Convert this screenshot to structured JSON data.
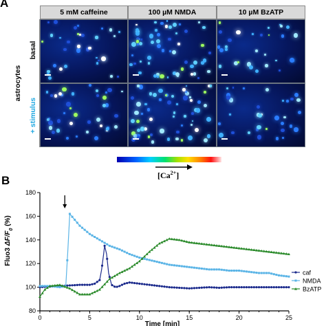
{
  "panelA": {
    "letter": "A",
    "columns": [
      "5 mM caffeine",
      "100 µM NMDA",
      "10 µM BzATP"
    ],
    "row_group_label": "astrocytes",
    "rows": [
      "basal",
      "+ stimulus"
    ],
    "colorbar_label_main": "[Ca",
    "colorbar_label_sup": "2+",
    "colorbar_label_end": "]"
  },
  "panelB": {
    "letter": "B"
  },
  "colors": {
    "caf": "#1b2a8c",
    "nmda": "#5ab4e6",
    "bzatp": "#2a8a2a",
    "stimulus_label": "#1ba6e0"
  },
  "chart_data": {
    "type": "line",
    "title": "",
    "xlabel": "Time [min]",
    "ylabel_main": "Fluo3 ",
    "ylabel_ratio": "ΔF/F",
    "ylabel_sub": "0",
    "ylabel_unit": " (%)",
    "xlim": [
      0,
      25
    ],
    "ylim": [
      80,
      180
    ],
    "xticks": [
      0,
      5,
      10,
      15,
      20,
      25
    ],
    "yticks": [
      80,
      100,
      120,
      140,
      160,
      180
    ],
    "grid": false,
    "legend_position": "right",
    "stimulus_arrow_x": 2.5,
    "series": [
      {
        "name": "caf",
        "marker": "circle",
        "points": [
          [
            0,
            100
          ],
          [
            1,
            100.5
          ],
          [
            2,
            101
          ],
          [
            3,
            101.5
          ],
          [
            4,
            102
          ],
          [
            5,
            102
          ],
          [
            5.5,
            103
          ],
          [
            6,
            106
          ],
          [
            6.2,
            115
          ],
          [
            6.4,
            128
          ],
          [
            6.5,
            135
          ],
          [
            6.7,
            128
          ],
          [
            6.9,
            112
          ],
          [
            7.2,
            102
          ],
          [
            7.6,
            100
          ],
          [
            8,
            101
          ],
          [
            8.5,
            103
          ],
          [
            9,
            104
          ],
          [
            10,
            103
          ],
          [
            11,
            102
          ],
          [
            12,
            101
          ],
          [
            13,
            100
          ],
          [
            14,
            99.5
          ],
          [
            15,
            99
          ],
          [
            16,
            99.5
          ],
          [
            17,
            100
          ],
          [
            18,
            99.5
          ],
          [
            19,
            100
          ],
          [
            20,
            100
          ],
          [
            21,
            100
          ],
          [
            22,
            100
          ],
          [
            23,
            100
          ],
          [
            24,
            100
          ],
          [
            25,
            100
          ]
        ]
      },
      {
        "name": "NMDA",
        "marker": "square",
        "points": [
          [
            0,
            101
          ],
          [
            1,
            101
          ],
          [
            2,
            100
          ],
          [
            2.6,
            101
          ],
          [
            2.8,
            130
          ],
          [
            3,
            162
          ],
          [
            3.5,
            157
          ],
          [
            4,
            152
          ],
          [
            5,
            145
          ],
          [
            6,
            140
          ],
          [
            7,
            135
          ],
          [
            8,
            132
          ],
          [
            9,
            128
          ],
          [
            10,
            125
          ],
          [
            11,
            123
          ],
          [
            12,
            121
          ],
          [
            13,
            119
          ],
          [
            14,
            118
          ],
          [
            15,
            117
          ],
          [
            16,
            116
          ],
          [
            17,
            115
          ],
          [
            18,
            115
          ],
          [
            19,
            114
          ],
          [
            20,
            114
          ],
          [
            21,
            113
          ],
          [
            22,
            112
          ],
          [
            23,
            112
          ],
          [
            24,
            110
          ],
          [
            25,
            109
          ]
        ]
      },
      {
        "name": "BzATP",
        "marker": "triangle",
        "points": [
          [
            0,
            92
          ],
          [
            0.5,
            98
          ],
          [
            1,
            101
          ],
          [
            2,
            102
          ],
          [
            3,
            99
          ],
          [
            4,
            94
          ],
          [
            5,
            94
          ],
          [
            6,
            98
          ],
          [
            7,
            107
          ],
          [
            8,
            112
          ],
          [
            9,
            116
          ],
          [
            10,
            122
          ],
          [
            11,
            130
          ],
          [
            12,
            137
          ],
          [
            13,
            141
          ],
          [
            14,
            140
          ],
          [
            15,
            138
          ],
          [
            16,
            137
          ],
          [
            17,
            136
          ],
          [
            18,
            135
          ],
          [
            19,
            134
          ],
          [
            20,
            133
          ],
          [
            21,
            132
          ],
          [
            22,
            131
          ],
          [
            23,
            130
          ],
          [
            24,
            129
          ],
          [
            25,
            128
          ]
        ]
      }
    ]
  }
}
